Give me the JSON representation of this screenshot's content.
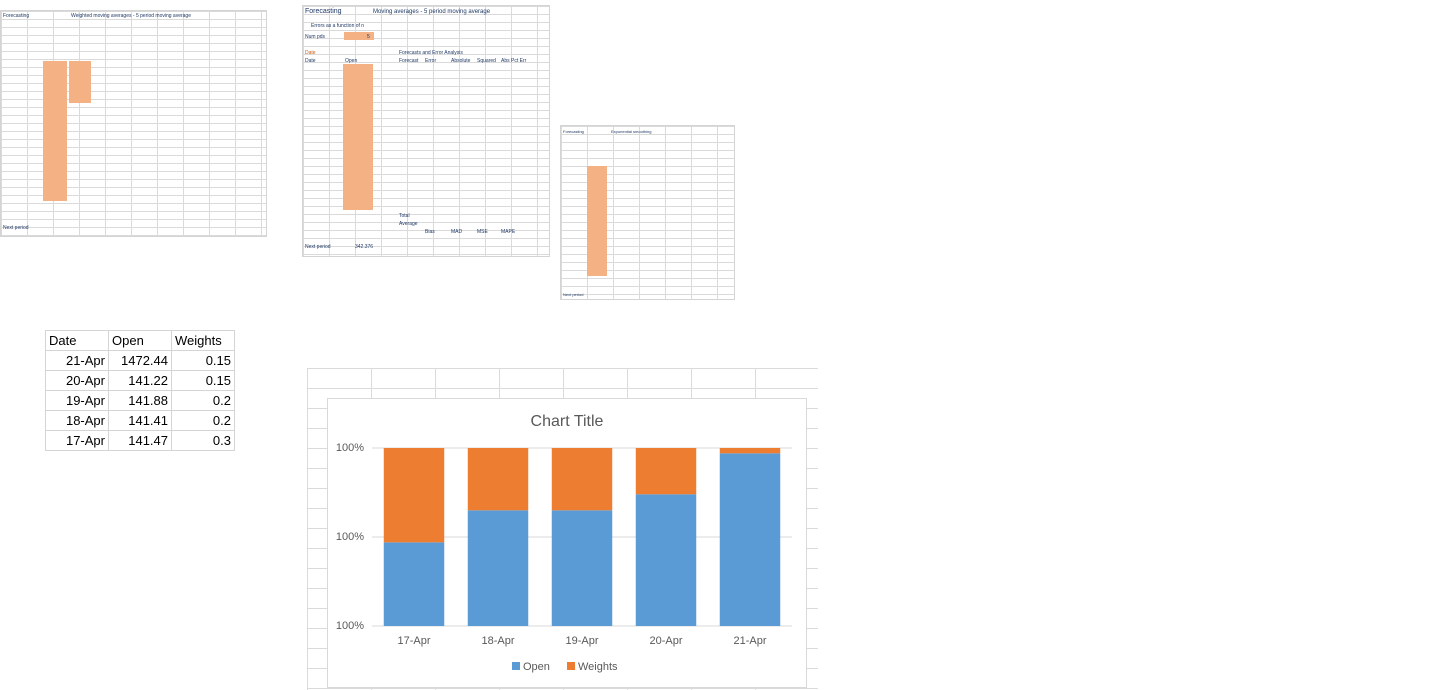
{
  "sheets": [
    {
      "title": "Forecasting",
      "subtitle": "Weighted moving averages - 5 period moving average",
      "footer": "Next period"
    },
    {
      "title": "Forecasting",
      "subtitle": "Moving averages - 5 period moving average",
      "note": "Errors as a function of n",
      "num_label": "Num pds",
      "num_value": 5,
      "date_label": "Date",
      "col_date": "Date",
      "col_open": "Open",
      "analysis": "Forecasts and Error Analysis",
      "headers": [
        "Forecast",
        "Error",
        "Absolute",
        "Squared",
        "Abs Pct Err"
      ],
      "summary": [
        "Total",
        "Average"
      ],
      "measures": [
        "Bias",
        "MAD",
        "MSE",
        "MAPE"
      ],
      "footer": "Next period",
      "next_value": 342.376
    },
    {
      "title": "Forecasting",
      "subtitle": "Exponential smoothing",
      "footer": "Next period"
    }
  ],
  "table": {
    "header": [
      "Date",
      "Open",
      "Weights"
    ],
    "rows": [
      [
        "21-Apr",
        1472.44,
        0.15
      ],
      [
        "20-Apr",
        141.22,
        0.15
      ],
      [
        "19-Apr",
        141.88,
        0.2
      ],
      [
        "18-Apr",
        141.41,
        0.2
      ],
      [
        "17-Apr",
        141.47,
        0.3
      ]
    ]
  },
  "chart_data": {
    "type": "stacked_bar",
    "title": "Chart Title",
    "categories": [
      "17-Apr",
      "18-Apr",
      "19-Apr",
      "20-Apr",
      "21-Apr"
    ],
    "series": [
      {
        "name": "Open",
        "color": "#5b9bd5",
        "values": [
          47,
          65,
          65,
          74,
          97
        ]
      },
      {
        "name": "Weights",
        "color": "#ed7d31",
        "values": [
          53,
          35,
          35,
          26,
          3
        ]
      }
    ],
    "ylim": [
      0,
      100
    ],
    "yticks": [
      {
        "value": 0,
        "label": "100%"
      },
      {
        "value": 50,
        "label": "100%"
      },
      {
        "value": 100,
        "label": "100%"
      }
    ],
    "grid": true,
    "legend": "bottom"
  }
}
